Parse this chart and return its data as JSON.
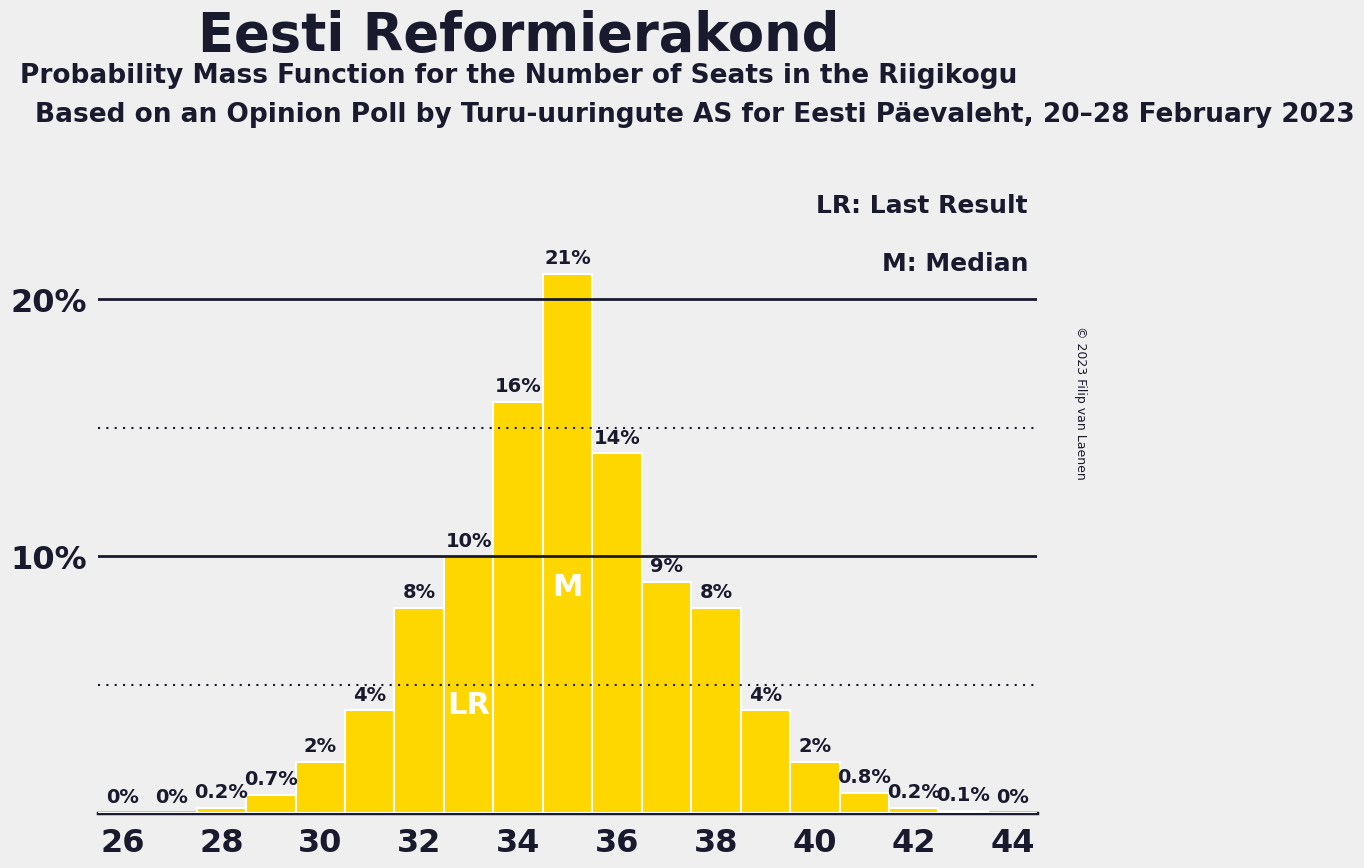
{
  "title": "Eesti Reformierakond",
  "subtitle1": "Probability Mass Function for the Number of Seats in the Riigikogu",
  "subtitle2": "Based on an Opinion Poll by Turu-uuringute AS for Eesti Päevaleht, 20–28 February 2023",
  "copyright": "© 2023 Filip van Laenen",
  "seats": [
    26,
    27,
    28,
    29,
    30,
    31,
    32,
    33,
    34,
    35,
    36,
    37,
    38,
    39,
    40,
    41,
    42,
    43,
    44
  ],
  "probabilities": [
    0.0,
    0.0,
    0.2,
    0.7,
    2.0,
    4.0,
    8.0,
    10.0,
    16.0,
    21.0,
    14.0,
    9.0,
    8.0,
    4.0,
    2.0,
    0.8,
    0.2,
    0.1,
    0.0
  ],
  "bar_color": "#FFD700",
  "bar_edge_color": "#FFFFFF",
  "background_color": "#EFEFEF",
  "text_color": "#1A1A2E",
  "lr_seat": 33,
  "median_seat": 35,
  "lr_label": "LR",
  "median_label": "M",
  "legend_lr": "LR: Last Result",
  "legend_m": "M: Median",
  "dotted_line_color": "#1A1A2E",
  "solid_line_color": "#1A1A2E",
  "ylim": [
    0,
    25
  ],
  "dotted_lines": [
    5.0,
    15.0
  ],
  "solid_lines": [
    10.0,
    20.0
  ],
  "xlabel_ticks": [
    26,
    28,
    30,
    32,
    34,
    36,
    38,
    40,
    42,
    44
  ],
  "title_fontsize": 38,
  "subtitle1_fontsize": 19,
  "subtitle2_fontsize": 19,
  "bar_label_fontsize": 14,
  "axis_label_fontsize": 23,
  "legend_fontsize": 18,
  "inbar_label_fontsize": 22,
  "copyright_fontsize": 9
}
